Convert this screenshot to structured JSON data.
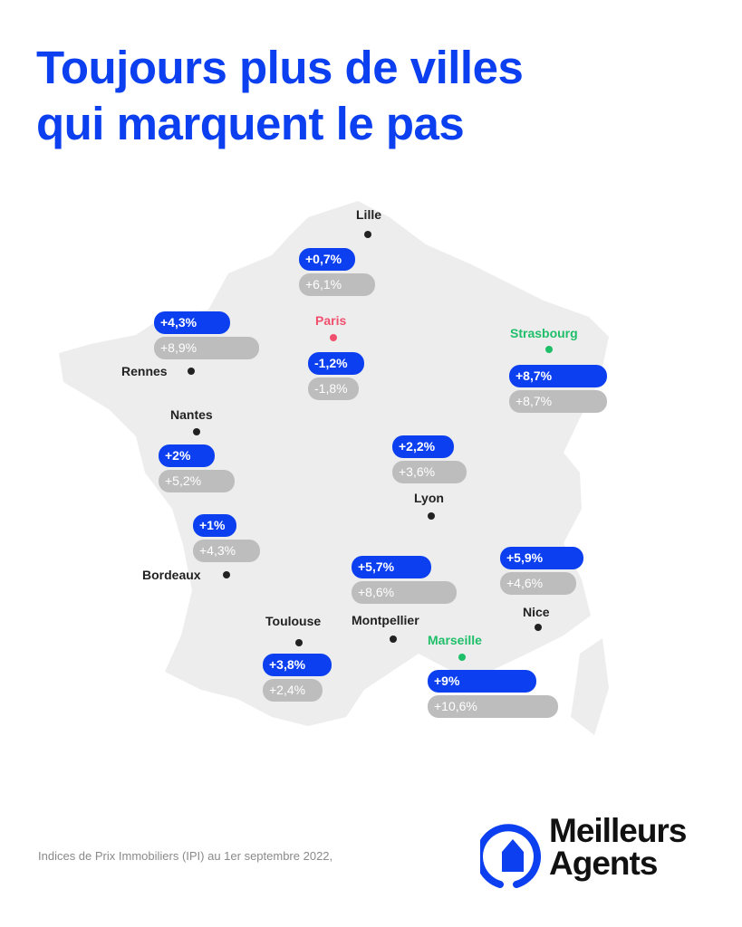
{
  "title": {
    "line1": "Toujours plus de villes",
    "line2": "qui marquent le pas"
  },
  "colors": {
    "brand_blue": "#0b3ff0",
    "previous_gray": "#bdbdbd",
    "paris_pink": "#f0506e",
    "green": "#1fbf6a",
    "map_fill": "#ededed"
  },
  "cities": [
    {
      "name": "Lille",
      "current": "+0,7%",
      "previous": "+6,1%",
      "color": "#222"
    },
    {
      "name": "Paris",
      "current": "-1,2%",
      "previous": "-1,8%",
      "color": "#f0506e"
    },
    {
      "name": "Rennes",
      "current": "+4,3%",
      "previous": "+8,9%",
      "color": "#222"
    },
    {
      "name": "Strasbourg",
      "current": "+8,7%",
      "previous": "+8,7%",
      "color": "#1fbf6a"
    },
    {
      "name": "Nantes",
      "current": "+2%",
      "previous": "+5,2%",
      "color": "#222"
    },
    {
      "name": "Lyon",
      "current": "+2,2%",
      "previous": "+3,6%",
      "color": "#222"
    },
    {
      "name": "Bordeaux",
      "current": "+1%",
      "previous": "+4,3%",
      "color": "#222"
    },
    {
      "name": "Montpellier",
      "current": "+5,7%",
      "previous": "+8,6%",
      "color": "#222"
    },
    {
      "name": "Nice",
      "current": "+5,9%",
      "previous": "+4,6%",
      "color": "#222"
    },
    {
      "name": "Toulouse",
      "current": "+3,8%",
      "previous": "+2,4%",
      "color": "#222"
    },
    {
      "name": "Marseille",
      "current": "+9%",
      "previous": "+10,6%",
      "color": "#1fbf6a"
    }
  ],
  "footnote": "Indices de Prix Immobiliers (IPI) au 1er septembre 2022,",
  "logo": {
    "line1": "Meilleurs",
    "line2": "Agents"
  }
}
